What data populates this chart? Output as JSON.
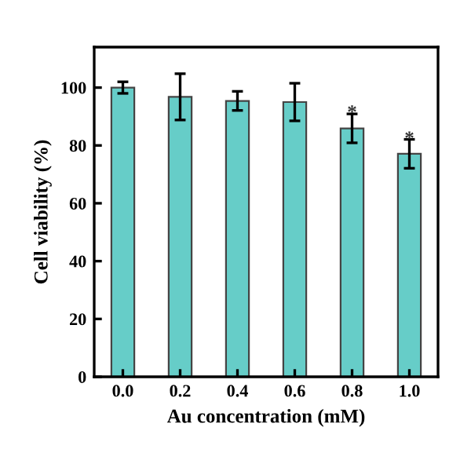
{
  "chart_data": {
    "type": "bar",
    "xlabel": "Au concentration (mM)",
    "ylabel": "Cell viability (%)",
    "categories": [
      "0.0",
      "0.2",
      "0.4",
      "0.6",
      "0.8",
      "1.0"
    ],
    "values": [
      100,
      96.8,
      95.4,
      95,
      85.9,
      77.1
    ],
    "errors": [
      2,
      8,
      3.3,
      6.5,
      5,
      5
    ],
    "color": "#66cdc8",
    "ylim": [
      0,
      114
    ],
    "yticks": [
      0,
      20,
      40,
      60,
      80,
      100
    ],
    "grid": false,
    "annotations": [
      {
        "text": "*",
        "x": "0.8",
        "y": 91
      },
      {
        "text": "*",
        "x": "1.0",
        "y": 82
      }
    ]
  }
}
